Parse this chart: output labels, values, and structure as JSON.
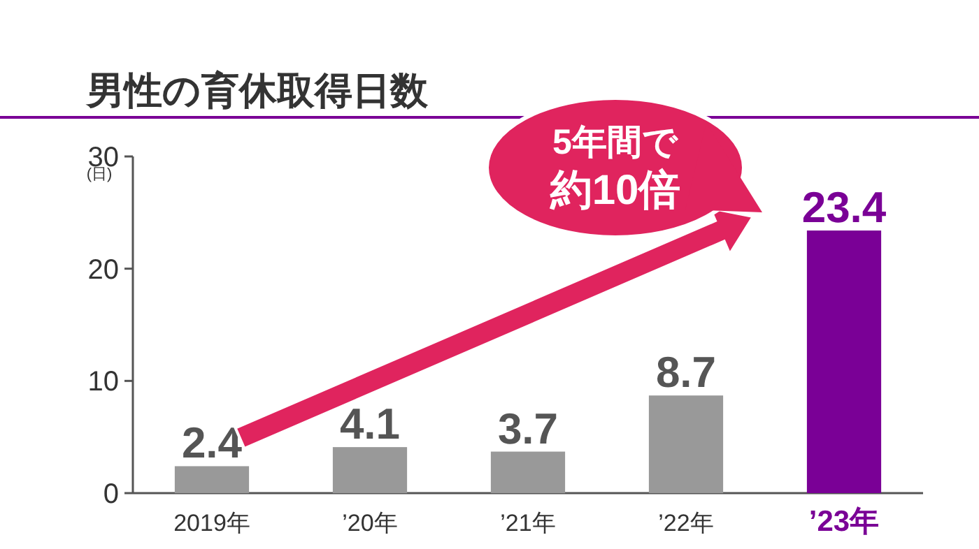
{
  "chart_data": {
    "type": "bar",
    "title": "男性の育休取得日数",
    "ylabel": "(日)",
    "categories": [
      "2019年",
      "’20年",
      "’21年",
      "’22年",
      "’23年"
    ],
    "values": [
      2.4,
      4.1,
      3.7,
      8.7,
      23.4
    ],
    "colors": [
      "#999999",
      "#999999",
      "#999999",
      "#999999",
      "#7a0096"
    ],
    "ylim": [
      0,
      30
    ],
    "yticks": [
      0,
      10,
      20,
      30
    ],
    "data_labels": true,
    "annotations": [
      "5年間で",
      "約10倍"
    ]
  }
}
